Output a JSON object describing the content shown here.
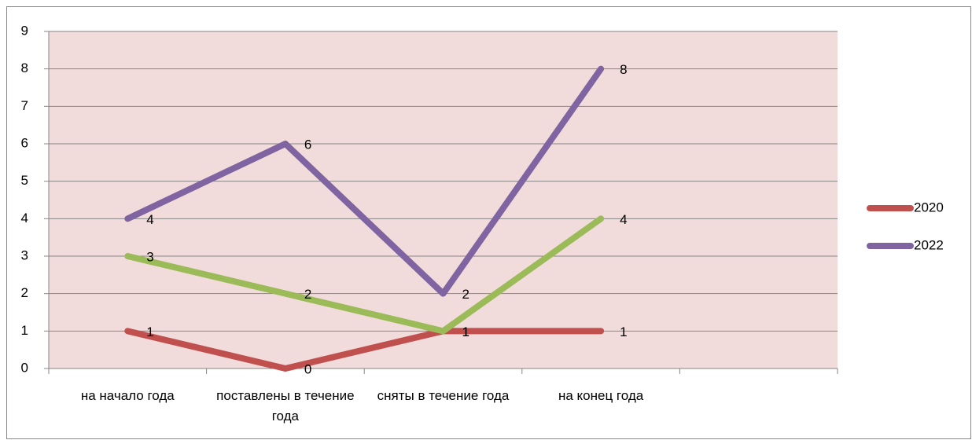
{
  "chart_data": {
    "type": "line",
    "categories": [
      "на начало года",
      "поставлены в течение года",
      "сняты в течение года",
      "на конец года",
      null
    ],
    "series": [
      {
        "name": "2020",
        "color": "#c0504d",
        "values": [
          1,
          0,
          1,
          1,
          null
        ]
      },
      {
        "name": "2022",
        "color": "#8064a2",
        "values": [
          4,
          6,
          2,
          8,
          null
        ]
      },
      {
        "color": "#9bbb59",
        "values": [
          3,
          2,
          1,
          4,
          null
        ]
      }
    ],
    "ylim": [
      0,
      9
    ],
    "yticks": [
      0,
      1,
      2,
      3,
      4,
      5,
      6,
      7,
      8,
      9
    ],
    "grid": true,
    "legend": "right",
    "plot_background": "#f2dcdb"
  }
}
